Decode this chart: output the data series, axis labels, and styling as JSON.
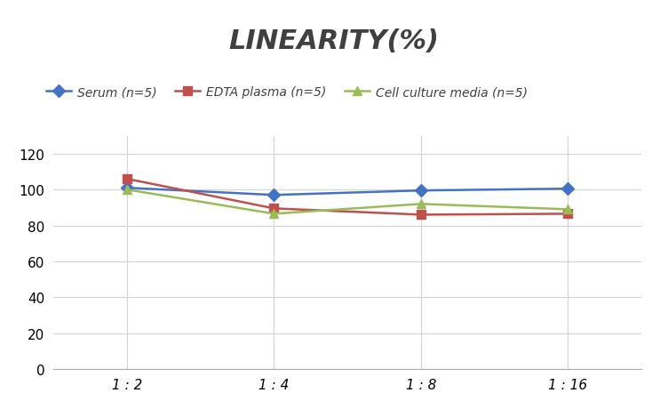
{
  "title": "LINEARITY(%)",
  "x_labels": [
    "1 : 2",
    "1 : 4",
    "1 : 8",
    "1 : 16"
  ],
  "x_positions": [
    0,
    1,
    2,
    3
  ],
  "series": [
    {
      "label": "Serum (n=5)",
      "values": [
        101,
        97,
        99.5,
        100.5
      ],
      "color": "#4472C4",
      "marker": "D",
      "markersize": 7,
      "linewidth": 1.8
    },
    {
      "label": "EDTA plasma (n=5)",
      "values": [
        106,
        89.5,
        86,
        86.5
      ],
      "color": "#C0504D",
      "marker": "s",
      "markersize": 7,
      "linewidth": 1.8
    },
    {
      "label": "Cell culture media (n=5)",
      "values": [
        100,
        86.5,
        92,
        89
      ],
      "color": "#9BBB59",
      "marker": "^",
      "markersize": 7,
      "linewidth": 1.8
    }
  ],
  "ylim": [
    0,
    130
  ],
  "yticks": [
    0,
    20,
    40,
    60,
    80,
    100,
    120
  ],
  "background_color": "#ffffff",
  "grid_color": "#d3d3d3",
  "title_fontsize": 22,
  "legend_fontsize": 10,
  "tick_fontsize": 11
}
